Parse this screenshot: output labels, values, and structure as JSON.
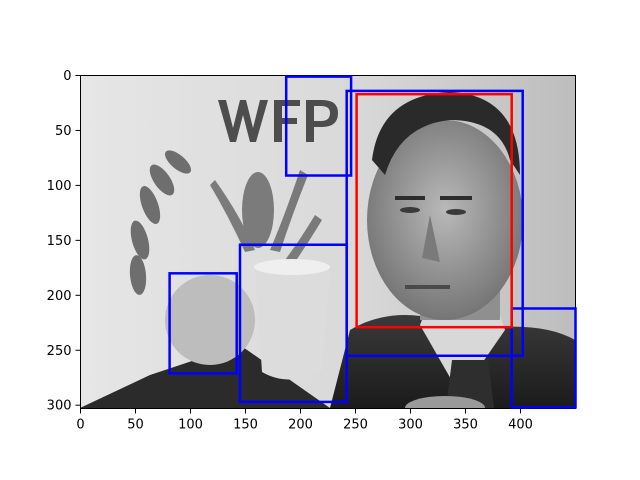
{
  "chart_data": {
    "type": "image-with-bounding-boxes",
    "image": {
      "description_free": true,
      "width": 450,
      "height": 303
    },
    "xlim": [
      0,
      450
    ],
    "ylim": [
      303,
      0
    ],
    "x_ticks": [
      0,
      50,
      100,
      150,
      200,
      250,
      300,
      350,
      400
    ],
    "y_ticks": [
      0,
      50,
      100,
      150,
      200,
      250,
      300
    ],
    "grid": false,
    "legend": "none",
    "colors": {
      "red_box": "#ff0000",
      "blue_box": "#0000ff"
    },
    "boxes": [
      {
        "color": "red",
        "x1": 251,
        "y1": 17,
        "x2": 392,
        "y2": 229
      },
      {
        "color": "blue",
        "x1": 187,
        "y1": 1,
        "x2": 246,
        "y2": 91
      },
      {
        "color": "blue",
        "x1": 242,
        "y1": 14,
        "x2": 402,
        "y2": 255
      },
      {
        "color": "blue",
        "x1": 81,
        "y1": 180,
        "x2": 142,
        "y2": 271
      },
      {
        "color": "blue",
        "x1": 145,
        "y1": 154,
        "x2": 242,
        "y2": 297
      },
      {
        "color": "blue",
        "x1": 392,
        "y1": 212,
        "x2": 450,
        "y2": 302
      }
    ]
  }
}
